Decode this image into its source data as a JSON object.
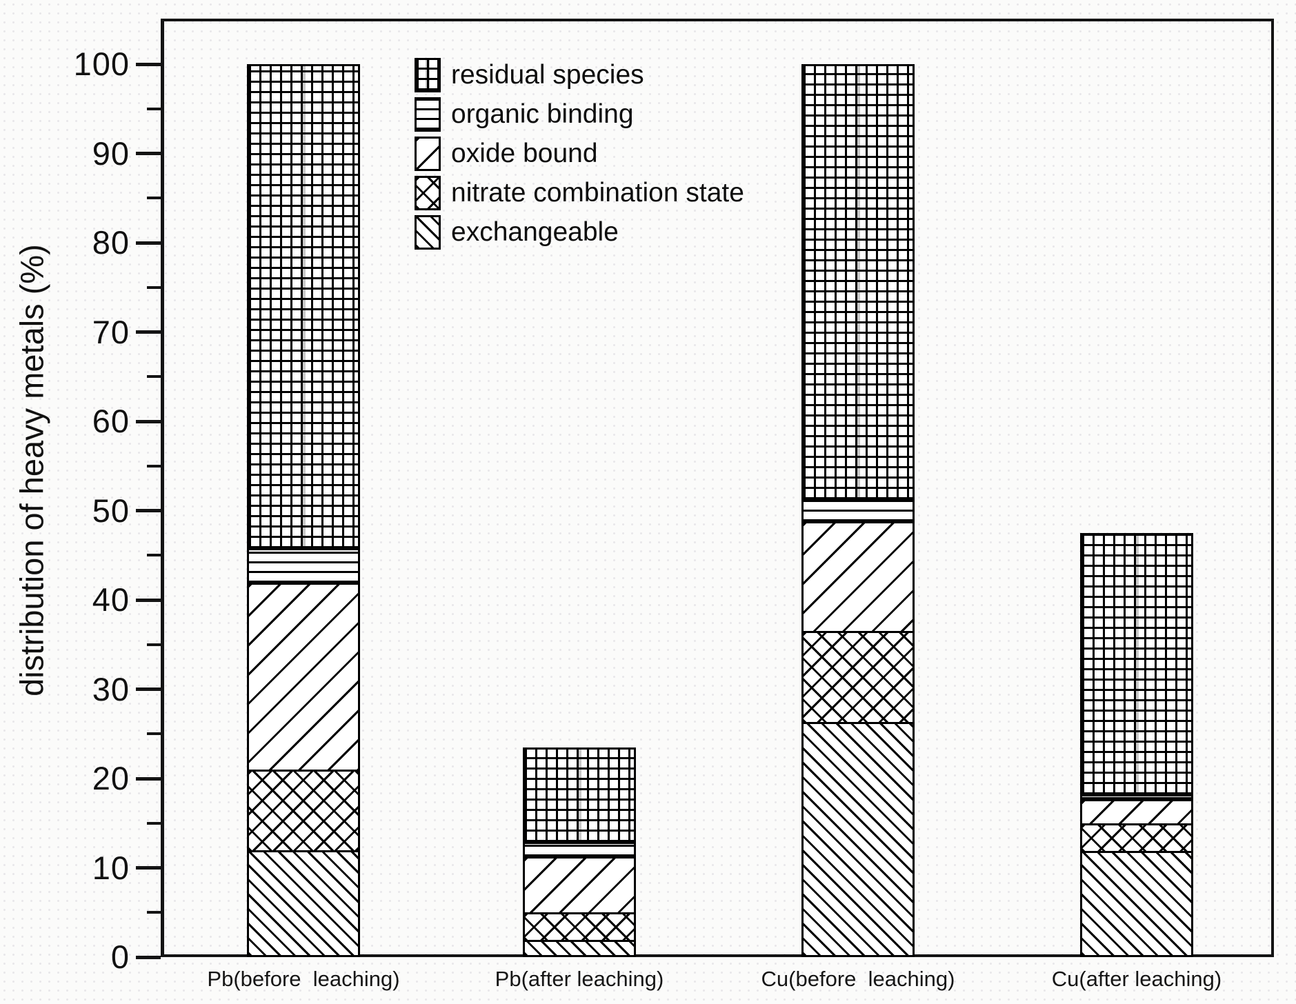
{
  "y_axis": {
    "title": "distribution of heavy metals (%)",
    "tick_labels": [
      "0",
      "10",
      "20",
      "30",
      "40",
      "50",
      "60",
      "70",
      "80",
      "90",
      "100"
    ]
  },
  "legend": {
    "items": [
      {
        "label": "residual species",
        "pattern": "grid"
      },
      {
        "label": "organic binding",
        "pattern": "hlines"
      },
      {
        "label": "oxide bound",
        "pattern": "diag-up"
      },
      {
        "label": "nitrate combination state",
        "pattern": "crosshatch"
      },
      {
        "label": "exchangeable",
        "pattern": "diag-down"
      }
    ]
  },
  "chart_data": {
    "type": "bar",
    "subtype": "stacked",
    "title": "",
    "xlabel": "",
    "ylabel": "distribution of heavy metals (%)",
    "ylim": [
      0,
      100
    ],
    "y_major_step": 10,
    "y_minor_step": 5,
    "grid": false,
    "legend_position": "top-left-inside",
    "categories": [
      "Pb(before  leaching)",
      "Pb(after leaching)",
      "Cu(before  leaching)",
      "Cu(after leaching)"
    ],
    "series": [
      {
        "name": "exchangeable",
        "pattern": "diag-down",
        "values": [
          12.0,
          1.9,
          26.3,
          11.9
        ]
      },
      {
        "name": "nitrate combination state",
        "pattern": "crosshatch",
        "values": [
          9.0,
          3.1,
          10.2,
          3.1
        ]
      },
      {
        "name": "oxide bound",
        "pattern": "diag-up",
        "values": [
          20.9,
          6.3,
          12.3,
          2.7
        ]
      },
      {
        "name": "organic binding",
        "pattern": "hlines",
        "values": [
          3.9,
          1.6,
          2.5,
          0.5
        ]
      },
      {
        "name": "residual species",
        "pattern": "grid",
        "values": [
          54.2,
          10.6,
          48.7,
          29.3
        ]
      }
    ],
    "stack_totals": [
      100,
      23.5,
      100,
      47.5
    ]
  },
  "colors": {
    "ink": "#111111",
    "background": "#fbfbfa",
    "bar_fill": "#ffffff",
    "ghost_gridline": "#c9c9c9"
  }
}
